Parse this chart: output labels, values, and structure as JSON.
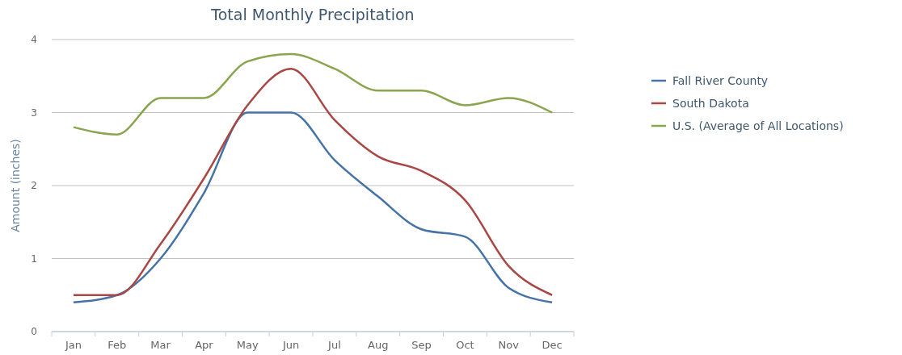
{
  "chart_data": {
    "type": "line",
    "title": "Total Monthly Precipitation",
    "ylabel": "Amount (inches)",
    "categories": [
      "Jan",
      "Feb",
      "Mar",
      "Apr",
      "May",
      "Jun",
      "Jul",
      "Aug",
      "Sep",
      "Oct",
      "Nov",
      "Dec"
    ],
    "series": [
      {
        "name": "Fall River County",
        "color": "#4572a7",
        "values": [
          0.4,
          0.5,
          1.0,
          1.9,
          3.0,
          3.0,
          2.35,
          1.85,
          1.4,
          1.3,
          0.6,
          0.4
        ]
      },
      {
        "name": "South Dakota",
        "color": "#aa4643",
        "values": [
          0.5,
          0.5,
          1.2,
          2.1,
          3.1,
          3.6,
          2.9,
          2.4,
          2.2,
          1.8,
          0.9,
          0.5
        ]
      },
      {
        "name": "U.S. (Average of All Locations)",
        "color": "#89a54e",
        "values": [
          2.8,
          2.7,
          3.2,
          3.2,
          3.7,
          3.8,
          3.6,
          3.3,
          3.3,
          3.1,
          3.2,
          3.0
        ]
      }
    ],
    "ylim": [
      0,
      4
    ],
    "yticks": [
      0,
      1,
      2,
      3,
      4
    ],
    "grid": "y",
    "legend": "right",
    "marker": "none",
    "line_style": "solid"
  }
}
